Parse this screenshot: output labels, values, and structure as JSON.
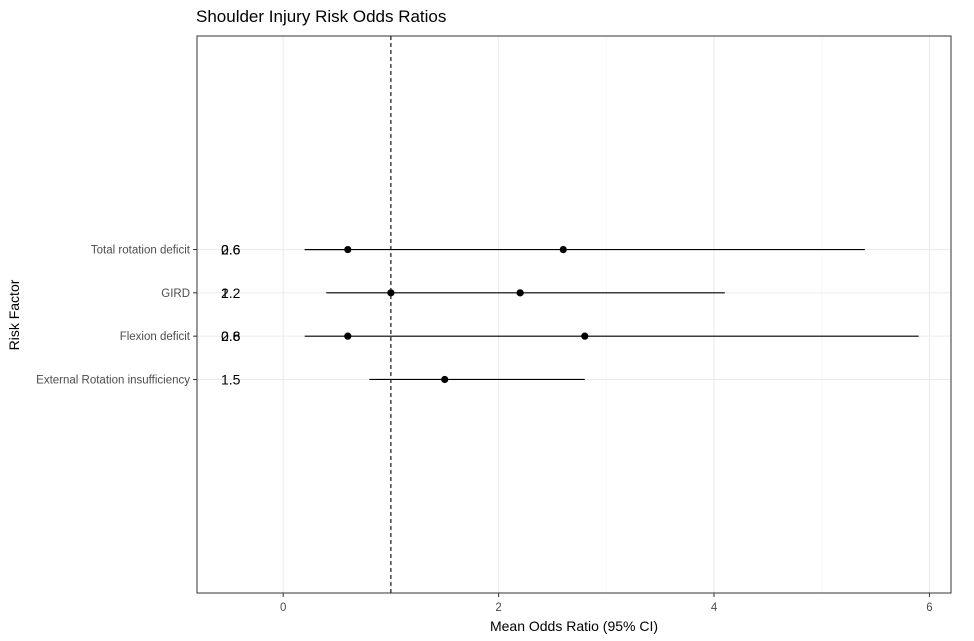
{
  "chart_data": {
    "type": "forest",
    "title": "Shoulder Injury Risk Odds Ratios",
    "xlabel": "Mean Odds Ratio (95% CI)",
    "ylabel": "Risk Factor",
    "xlim": [
      -0.8,
      6.2
    ],
    "x_ticks": [
      0,
      2,
      4,
      6
    ],
    "reference_line": 1,
    "grid": true,
    "categories": [
      "Total rotation deficit",
      "GIRD",
      "Flexion deficit",
      "External Rotation insufficiency"
    ],
    "points": [
      {
        "category": "Total rotation deficit",
        "mean": 2.6,
        "lower": 0.2,
        "upper": 5.4,
        "label": "2.6"
      },
      {
        "category": "Total rotation deficit",
        "mean": 0.6,
        "lower": 0.2,
        "upper": 0.6,
        "label": "0.6"
      },
      {
        "category": "GIRD",
        "mean": 2.2,
        "lower": 1.0,
        "upper": 4.1,
        "label": "2.2"
      },
      {
        "category": "GIRD",
        "mean": 1.0,
        "lower": 0.4,
        "upper": 1.0,
        "label": "1"
      },
      {
        "category": "Flexion deficit",
        "mean": 2.8,
        "lower": 0.6,
        "upper": 5.9,
        "label": "2.8"
      },
      {
        "category": "Flexion deficit",
        "mean": 0.6,
        "lower": 0.2,
        "upper": 0.6,
        "label": "0.6"
      },
      {
        "category": "External Rotation insufficiency",
        "mean": 1.5,
        "lower": 0.8,
        "upper": 2.8,
        "label": "1.5"
      }
    ]
  }
}
